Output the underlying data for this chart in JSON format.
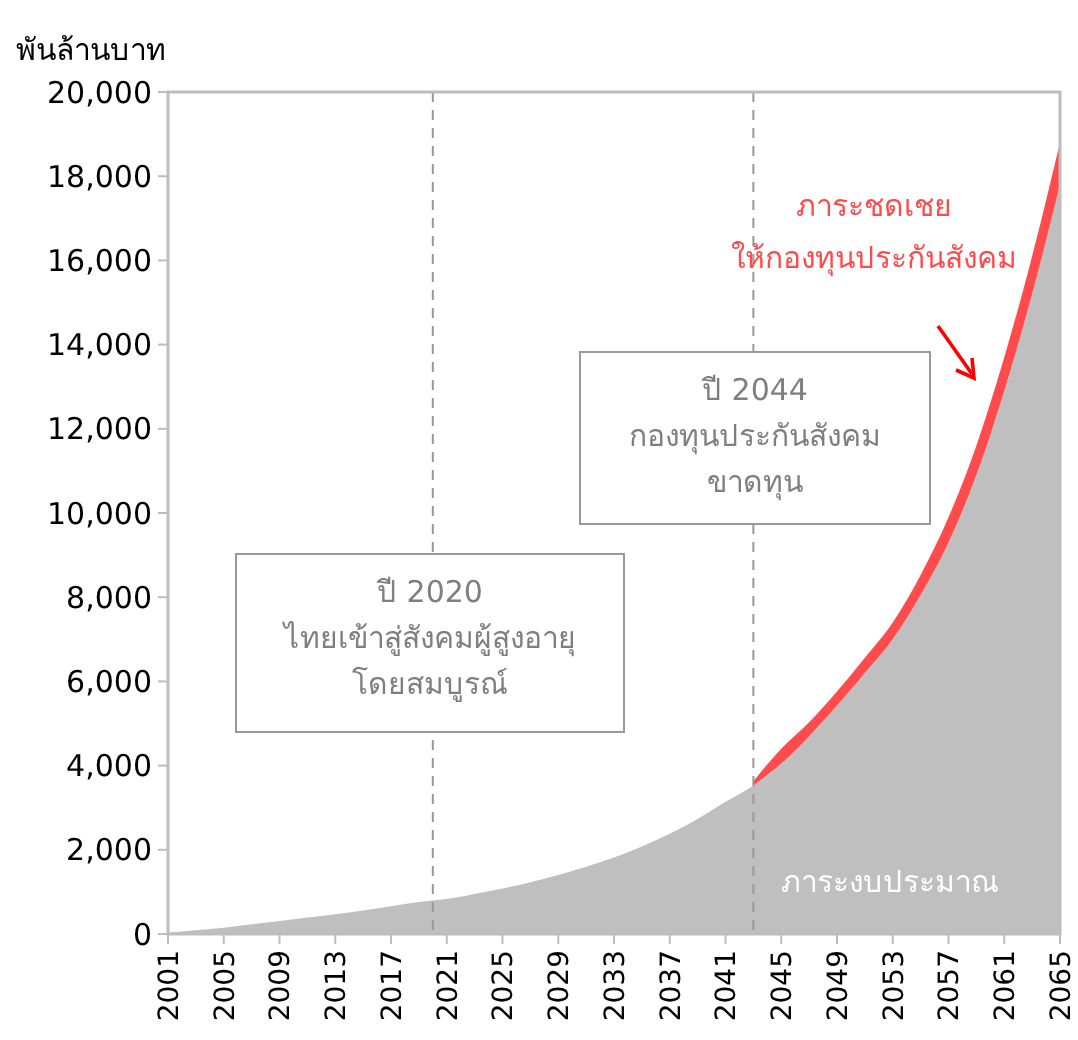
{
  "chart_data": {
    "type": "area",
    "stacked": true,
    "ylabel": "พันล้านบาท",
    "x": [
      2001,
      2003,
      2005,
      2007,
      2009,
      2011,
      2013,
      2015,
      2017,
      2019,
      2021,
      2023,
      2025,
      2027,
      2029,
      2031,
      2033,
      2035,
      2037,
      2039,
      2041,
      2043,
      2045,
      2047,
      2049,
      2051,
      2053,
      2055,
      2057,
      2059,
      2061,
      2063,
      2065
    ],
    "series": [
      {
        "name": "ภาระงบประมาณ",
        "color": "#bfbfbf",
        "values": [
          30,
          90,
          150,
          230,
          310,
          390,
          470,
          560,
          660,
          760,
          830,
          950,
          1080,
          1230,
          1400,
          1600,
          1820,
          2080,
          2380,
          2730,
          3140,
          3530,
          4050,
          4700,
          5430,
          6200,
          7000,
          8050,
          9300,
          10900,
          12900,
          15200,
          17800
        ]
      },
      {
        "name": "ภาระชดเชย\nให้กองทุนประกันสังคม",
        "color": "#ff4b4b",
        "values": [
          null,
          null,
          null,
          null,
          null,
          null,
          null,
          null,
          null,
          null,
          null,
          null,
          null,
          null,
          null,
          null,
          null,
          null,
          null,
          null,
          null,
          100,
          350,
          330,
          330,
          360,
          400,
          480,
          600,
          700,
          800,
          900,
          1000
        ]
      }
    ],
    "xlim": [
      2001,
      2065
    ],
    "xticks": [
      2001,
      2005,
      2009,
      2013,
      2017,
      2021,
      2025,
      2029,
      2033,
      2037,
      2041,
      2045,
      2049,
      2053,
      2057,
      2061,
      2065
    ],
    "ylim": [
      0,
      20000
    ],
    "yticks": [
      {
        "value": 0,
        "label": "0"
      },
      {
        "value": 2000,
        "label": "2,000"
      },
      {
        "value": 4000,
        "label": "4,000"
      },
      {
        "value": 6000,
        "label": "6,000"
      },
      {
        "value": 8000,
        "label": "8,000"
      },
      {
        "value": 10000,
        "label": "10,000"
      },
      {
        "value": 12000,
        "label": "12,000"
      },
      {
        "value": 14000,
        "label": "14,000"
      },
      {
        "value": 16000,
        "label": "16,000"
      },
      {
        "value": 18000,
        "label": "18,000"
      },
      {
        "value": 20000,
        "label": "20,000"
      }
    ],
    "ref_lines": [
      {
        "axis": "x",
        "value": 2020,
        "color": "#999999",
        "line_style": "dashed"
      },
      {
        "axis": "x",
        "value": 2043,
        "color": "#999999",
        "line_style": "dashed"
      }
    ],
    "annotations": [
      "ปี 2020\nไทยเข้าสู่สังคมผู้สูงอายุ\nโดยสมบูรณ์",
      "ปี 2044\nกองทุนประกันสังคม\nขาดทุน"
    ],
    "grid": false
  }
}
